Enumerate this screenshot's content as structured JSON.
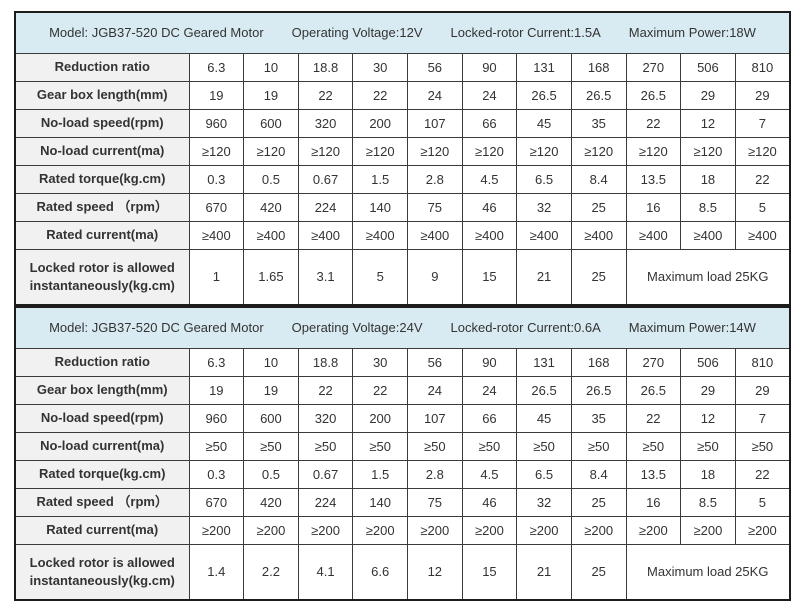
{
  "colors": {
    "header_bg": "#d9ebf2",
    "label_bg": "#f1f1f1",
    "border": "#1c1c1c",
    "text": "#333333"
  },
  "sheet": {
    "tables": [
      {
        "header": {
          "model": "Model:  JGB37-520 DC Geared Motor",
          "voltage": "Operating Voltage:12V",
          "locked_rotor_current": "Locked-rotor Current:1.5A",
          "max_power": "Maximum Power:18W"
        },
        "rows": [
          {
            "label": "Reduction ratio",
            "values": [
              "6.3",
              "10",
              "18.8",
              "30",
              "56",
              "90",
              "131",
              "168",
              "270",
              "506",
              "810"
            ]
          },
          {
            "label": "Gear box length(mm)",
            "values": [
              "19",
              "19",
              "22",
              "22",
              "24",
              "24",
              "26.5",
              "26.5",
              "26.5",
              "29",
              "29"
            ]
          },
          {
            "label": "No-load speed(rpm)",
            "values": [
              "960",
              "600",
              "320",
              "200",
              "107",
              "66",
              "45",
              "35",
              "22",
              "12",
              "7"
            ]
          },
          {
            "label": "No-load current(ma)",
            "values": [
              "≥120",
              "≥120",
              "≥120",
              "≥120",
              "≥120",
              "≥120",
              "≥120",
              "≥120",
              "≥120",
              "≥120",
              "≥120"
            ]
          },
          {
            "label": "Rated torque(kg.cm)",
            "values": [
              "0.3",
              "0.5",
              "0.67",
              "1.5",
              "2.8",
              "4.5",
              "6.5",
              "8.4",
              "13.5",
              "18",
              "22"
            ]
          },
          {
            "label": "Rated speed （rpm）",
            "values": [
              "670",
              "420",
              "224",
              "140",
              "75",
              "46",
              "32",
              "25",
              "16",
              "8.5",
              "5"
            ]
          },
          {
            "label": "Rated current(ma)",
            "values": [
              "≥400",
              "≥400",
              "≥400",
              "≥400",
              "≥400",
              "≥400",
              "≥400",
              "≥400",
              "≥400",
              "≥400",
              "≥400"
            ]
          },
          {
            "label": "Locked rotor is allowed instantaneously(kg.cm)",
            "values": [
              "1",
              "1.65",
              "3.1",
              "5",
              "9",
              "15",
              "21",
              "25"
            ],
            "merged_note": "Maximum load 25KG",
            "merged_span": 3
          }
        ]
      },
      {
        "header": {
          "model": "Model:  JGB37-520 DC Geared Motor",
          "voltage": "Operating Voltage:24V",
          "locked_rotor_current": "Locked-rotor Current:0.6A",
          "max_power": "Maximum Power:14W"
        },
        "rows": [
          {
            "label": "Reduction ratio",
            "values": [
              "6.3",
              "10",
              "18.8",
              "30",
              "56",
              "90",
              "131",
              "168",
              "270",
              "506",
              "810"
            ]
          },
          {
            "label": "Gear box length(mm)",
            "values": [
              "19",
              "19",
              "22",
              "22",
              "24",
              "24",
              "26.5",
              "26.5",
              "26.5",
              "29",
              "29"
            ]
          },
          {
            "label": "No-load speed(rpm)",
            "values": [
              "960",
              "600",
              "320",
              "200",
              "107",
              "66",
              "45",
              "35",
              "22",
              "12",
              "7"
            ]
          },
          {
            "label": "No-load current(ma)",
            "values": [
              "≥50",
              "≥50",
              "≥50",
              "≥50",
              "≥50",
              "≥50",
              "≥50",
              "≥50",
              "≥50",
              "≥50",
              "≥50"
            ]
          },
          {
            "label": "Rated torque(kg.cm)",
            "values": [
              "0.3",
              "0.5",
              "0.67",
              "1.5",
              "2.8",
              "4.5",
              "6.5",
              "8.4",
              "13.5",
              "18",
              "22"
            ]
          },
          {
            "label": "Rated speed （rpm）",
            "values": [
              "670",
              "420",
              "224",
              "140",
              "75",
              "46",
              "32",
              "25",
              "16",
              "8.5",
              "5"
            ]
          },
          {
            "label": "Rated current(ma)",
            "values": [
              "≥200",
              "≥200",
              "≥200",
              "≥200",
              "≥200",
              "≥200",
              "≥200",
              "≥200",
              "≥200",
              "≥200",
              "≥200"
            ]
          },
          {
            "label": "Locked rotor is allowed instantaneously(kg.cm)",
            "values": [
              "1.4",
              "2.2",
              "4.1",
              "6.6",
              "12",
              "15",
              "21",
              "25"
            ],
            "merged_note": "Maximum load 25KG",
            "merged_span": 3
          }
        ]
      }
    ]
  }
}
